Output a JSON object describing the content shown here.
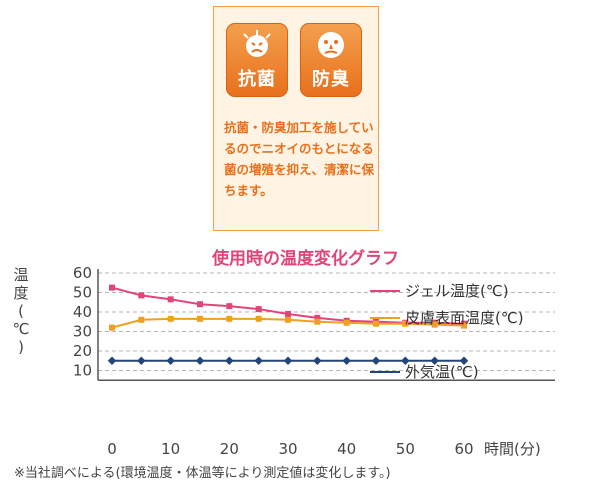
{
  "info_panel": {
    "badges": [
      {
        "label": "抗菌",
        "icon": "germ-icon"
      },
      {
        "label": "防臭",
        "icon": "odor-face-icon"
      }
    ],
    "description": "抗菌・防臭加工を施しているのでニオイのもとになる菌の増殖を抑え、清潔に保ちます。",
    "colors": {
      "badge": "#e8701c",
      "text": "#e8701c",
      "panel_bg": "#fff4e4"
    }
  },
  "chart_data": {
    "type": "line",
    "title": "使用時の温度変化グラフ",
    "ylabel_chars": [
      "温",
      "度",
      "(",
      "℃",
      ")"
    ],
    "xlabel": "時間(分)",
    "x_ticks": [
      "0",
      "10",
      "20",
      "30",
      "40",
      "50",
      "60"
    ],
    "y_ticks": [
      "10",
      "20",
      "30",
      "40",
      "50",
      "60"
    ],
    "xlim": [
      0,
      60
    ],
    "ylim": [
      5,
      60
    ],
    "grid": true,
    "x": [
      0,
      5,
      10,
      15,
      20,
      25,
      30,
      35,
      40,
      45,
      50,
      55,
      60
    ],
    "series": [
      {
        "name": "ジェル温度(℃)",
        "color": "#e0457a",
        "marker": "square",
        "values": [
          52.5,
          48.5,
          46.5,
          44,
          43,
          41.5,
          39,
          37,
          35.5,
          35,
          34.5,
          34.5,
          34
        ]
      },
      {
        "name": "皮膚表面温度(℃)",
        "color": "#f0a020",
        "marker": "square",
        "values": [
          32,
          36,
          36.5,
          36.5,
          36.5,
          36.5,
          36,
          35,
          34.5,
          34,
          34,
          33.5,
          33
        ]
      },
      {
        "name": "外気温(℃)",
        "color": "#23457a",
        "marker": "diamond",
        "values": [
          15,
          15,
          15,
          15,
          15,
          15,
          15,
          15,
          15,
          15,
          15,
          15,
          15
        ]
      }
    ],
    "legend_position": "right"
  },
  "footnote": "※当社調べによる(環境温度・体温等により測定値は変化します。)"
}
